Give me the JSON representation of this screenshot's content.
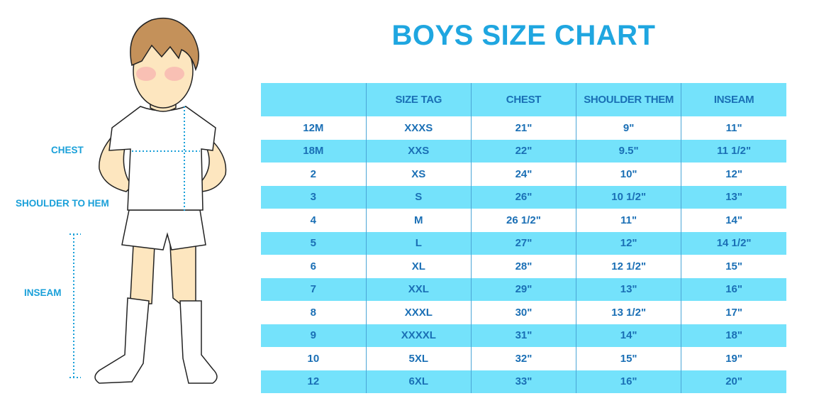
{
  "title": "BOYS SIZE CHART",
  "colors": {
    "accent": "#1fa6e0",
    "row_stripe": "#74e2fb",
    "text": "#1a6fb5"
  },
  "figure": {
    "labels": {
      "chest": "CHEST",
      "shoulder_to_hem": "SHOULDER TO HEM",
      "inseam": "INSEAM"
    }
  },
  "table": {
    "headers": [
      "",
      "SIZE TAG",
      "CHEST",
      "SHOULDER THEM",
      "INSEAM"
    ],
    "rows": [
      [
        "12M",
        "XXXS",
        "21\"",
        "9\"",
        "11\""
      ],
      [
        "18M",
        "XXS",
        "22\"",
        "9.5\"",
        "11 1/2\""
      ],
      [
        "2",
        "XS",
        "24\"",
        "10\"",
        "12\""
      ],
      [
        "3",
        "S",
        "26\"",
        "10 1/2\"",
        "13\""
      ],
      [
        "4",
        "M",
        "26 1/2\"",
        "11\"",
        "14\""
      ],
      [
        "5",
        "L",
        "27\"",
        "12\"",
        "14 1/2\""
      ],
      [
        "6",
        "XL",
        "28\"",
        "12 1/2\"",
        "15\""
      ],
      [
        "7",
        "XXL",
        "29\"",
        "13\"",
        "16\""
      ],
      [
        "8",
        "XXXL",
        "30\"",
        "13 1/2\"",
        "17\""
      ],
      [
        "9",
        "XXXXL",
        "31\"",
        "14\"",
        "18\""
      ],
      [
        "10",
        "5XL",
        "32\"",
        "15\"",
        "19\""
      ],
      [
        "12",
        "6XL",
        "33\"",
        "16\"",
        "20\""
      ]
    ]
  }
}
